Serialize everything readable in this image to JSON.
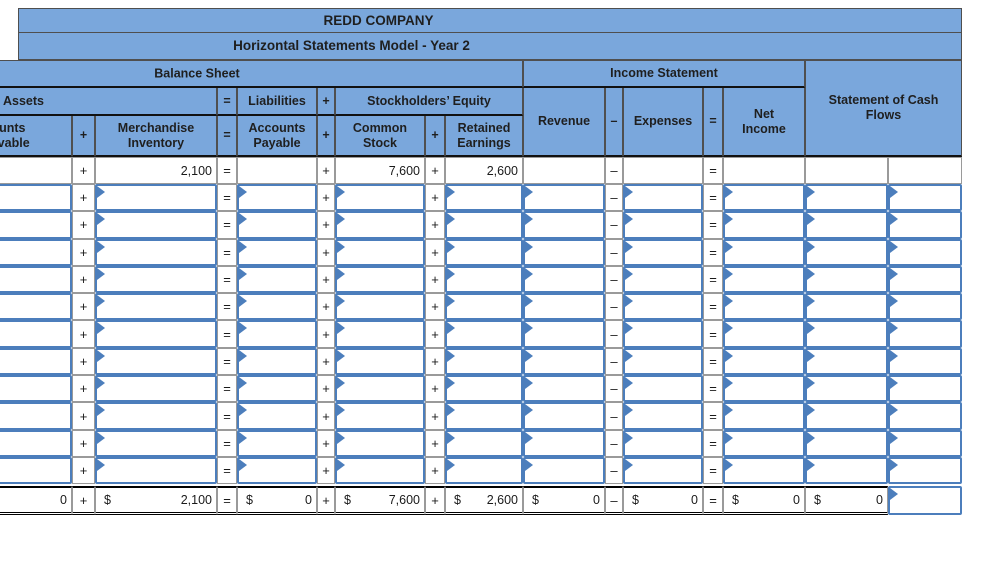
{
  "window": {
    "title": "REDD COMPANY",
    "subtitle": "Horizontal Statements Model - Year 2"
  },
  "sections": {
    "balance_sheet": "Balance Sheet",
    "income_statement": "Income Statement",
    "cash_flows": "Statement of Cash Flows"
  },
  "balance_sheet_groups": {
    "assets": "Assets",
    "equals": "=",
    "liabilities": "Liabilities",
    "plus": "+",
    "stockholders_equity": "Stockholders’ Equity"
  },
  "columns": {
    "labels": {
      "accounts_receivable": "Accounts Receivable",
      "op_plus1": "+",
      "merchandise_inventory": "Merchandise Inventory",
      "op_eq1": "=",
      "accounts_payable": "Accounts Payable",
      "op_plus2": "+",
      "common_stock": "Common Stock",
      "op_plus3": "+",
      "retained_earnings": "Retained Earnings",
      "revenue": "Revenue",
      "op_minus": "–",
      "expenses": "Expenses",
      "op_eq2": "=",
      "net_income": "Net Income"
    },
    "order": [
      "accounts_receivable",
      "op_plus1",
      "merchandise_inventory",
      "op_eq1",
      "accounts_payable",
      "op_plus2",
      "common_stock",
      "op_plus3",
      "retained_earnings",
      "revenue",
      "op_minus",
      "expenses",
      "op_eq2",
      "net_income",
      "cash_flow_amount",
      "cash_flow_type"
    ]
  },
  "grid": {
    "beginning_row": {
      "accounts_receivable": "",
      "merchandise_inventory": "2,100",
      "accounts_payable": "",
      "common_stock": "7,600",
      "retained_earnings": "2,600",
      "revenue": "",
      "expenses": "",
      "net_income": "",
      "cash_flow_amount": "",
      "cash_flow_type": ""
    },
    "input_row_count": 11,
    "totals": {
      "accounts_receivable": {
        "dollar": "",
        "amount": "0"
      },
      "merchandise_inventory": {
        "dollar": "$",
        "amount": "2,100"
      },
      "accounts_payable": {
        "dollar": "$",
        "amount": "0"
      },
      "common_stock": {
        "dollar": "$",
        "amount": "7,600"
      },
      "retained_earnings": {
        "dollar": "$",
        "amount": "2,600"
      },
      "revenue": {
        "dollar": "$",
        "amount": "0"
      },
      "expenses": {
        "dollar": "$",
        "amount": "0"
      },
      "net_income": {
        "dollar": "$",
        "amount": "0"
      },
      "cash_flow_amount": {
        "dollar": "$",
        "amount": "0"
      }
    }
  },
  "colors": {
    "header_blue": "#7aa7dc",
    "input_border_blue": "#4c7ebc",
    "grid_border": "#9a9a9a",
    "heavy_border": "#111111"
  }
}
